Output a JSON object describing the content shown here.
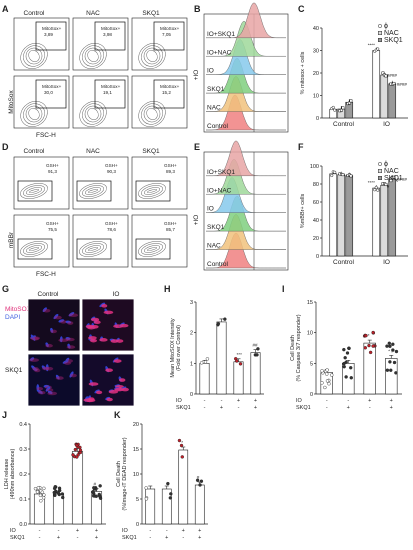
{
  "panels": {
    "A": "A",
    "B": "B",
    "C": "C",
    "D": "D",
    "E": "E",
    "F": "F",
    "G": "G",
    "H": "H",
    "I": "I",
    "J": "J",
    "K": "K"
  },
  "group_labels": [
    "Control",
    "NAC",
    "SKQ1"
  ],
  "panel_a": {
    "ylabel": "MitoSox",
    "xlabel": "FSC-H",
    "top": [
      {
        "label": "MitoSox+",
        "value": "3,89"
      },
      {
        "label": "MitoSox+",
        "value": "3,98"
      },
      {
        "label": "MitoSox+",
        "value": "7,05"
      }
    ],
    "bottom": [
      {
        "label": "MitoSox+",
        "value": "30,0"
      },
      {
        "label": "MitoSox+",
        "value": "19,1"
      },
      {
        "label": "MitoSox+",
        "value": "15,2"
      }
    ]
  },
  "panel_d": {
    "ylabel": "mBBr",
    "xlabel": "FSC-H",
    "top": [
      {
        "label": "GSH+",
        "value": "91,3"
      },
      {
        "label": "GSH+",
        "value": "90,3"
      },
      {
        "label": "GSH+",
        "value": "89,3"
      }
    ],
    "bottom": [
      {
        "label": "GSH+",
        "value": "75,5"
      },
      {
        "label": "GSH+",
        "value": "78,6"
      },
      {
        "label": "GSH+",
        "value": "85,7"
      }
    ]
  },
  "histo_labels": [
    "IO+SKQ1",
    "IO+NAC",
    "IO",
    "SKQ1",
    "NAC",
    "Control"
  ],
  "histo_axis": "+IO",
  "histo_colors": [
    "#e8a4a4",
    "#9fd89a",
    "#86c9ec",
    "#7fcf7f",
    "#f1c27d",
    "#f08080"
  ],
  "legend": [
    "ϕ",
    "NAC",
    "SKQ1"
  ],
  "ctrl_label": "Control",
  "io_label": "IO",
  "sig": {
    "c_phi": "****",
    "c_nac": "####",
    "c_skq": "####",
    "f_phi": "****",
    "f_nac": "#",
    "f_skq": "####",
    "h_io": "***",
    "h_skq": "##",
    "i_io": "*",
    "i_skq": "* #",
    "j_io": "*",
    "j_skq": "#",
    "k_io": "*",
    "k_skq": "#"
  },
  "panel_g": {
    "col1": "Control",
    "col2": "IO",
    "row2": "SKQ1",
    "stain1": "MitoSOX",
    "stain2": "DAPI"
  },
  "treat": {
    "io": "IO",
    "skq": "SKQ1",
    "io_row": [
      "-",
      "-",
      "+",
      "+"
    ],
    "skq_row": [
      "-",
      "+",
      "-",
      "+"
    ]
  },
  "chart_data": [
    {
      "panel": "C",
      "type": "bar",
      "ylabel": "% mitosox + cells",
      "ylim": [
        0,
        40
      ],
      "yticks": [
        0,
        10,
        20,
        30,
        40
      ],
      "categories": [
        "Control",
        "IO"
      ],
      "series": [
        {
          "name": "ϕ",
          "values": [
            3.9,
            30.0
          ]
        },
        {
          "name": "NAC",
          "values": [
            4.0,
            19.1
          ]
        },
        {
          "name": "SKQ1",
          "values": [
            7.0,
            15.2
          ]
        }
      ]
    },
    {
      "panel": "F",
      "type": "bar",
      "ylabel": "%mBBr+ cells",
      "ylim": [
        0,
        100
      ],
      "yticks": [
        0,
        20,
        40,
        60,
        80,
        100
      ],
      "categories": [
        "Control",
        "IO"
      ],
      "series": [
        {
          "name": "ϕ",
          "values": [
            91.3,
            75.5
          ]
        },
        {
          "name": "NAC",
          "values": [
            90.3,
            78.6
          ]
        },
        {
          "name": "SKQ1",
          "values": [
            89.3,
            85.7
          ]
        }
      ]
    },
    {
      "panel": "H",
      "type": "bar",
      "ylabel": "Mean MitoSOX Intensity (Fold over Control)",
      "ylim": [
        0,
        3
      ],
      "yticks": [
        0,
        1,
        2,
        3
      ],
      "categories": [
        "Control",
        "SKQ1",
        "IO",
        "IO+SKQ1"
      ],
      "values": [
        1.0,
        2.35,
        1.05,
        1.35
      ]
    },
    {
      "panel": "I",
      "type": "bar",
      "ylabel": "Cell Death (% Caspase 3/7 responder)",
      "ylim": [
        0,
        15
      ],
      "yticks": [
        0,
        5,
        10,
        15
      ],
      "categories": [
        "Control",
        "SKQ1",
        "IO",
        "IO+SKQ1"
      ],
      "values": [
        3.5,
        5.0,
        8.3,
        5.8
      ]
    },
    {
      "panel": "J",
      "type": "bar",
      "ylabel": "LDH release (490nm absorbance)",
      "ylim": [
        0,
        0.4
      ],
      "yticks": [
        0.0,
        0.1,
        0.2,
        0.3,
        0.4
      ],
      "categories": [
        "Control",
        "SKQ1",
        "IO",
        "IO+SKQ1"
      ],
      "values": [
        0.12,
        0.12,
        0.29,
        0.13
      ]
    },
    {
      "panel": "K",
      "type": "bar",
      "ylabel": "Cell Death (%Image-iT DEAD responder)",
      "ylim": [
        0,
        20
      ],
      "yticks": [
        0,
        5,
        10,
        15,
        20
      ],
      "categories": [
        "Control",
        "SKQ1",
        "IO",
        "IO+SKQ1"
      ],
      "values": [
        7.0,
        7.0,
        14.8,
        7.8
      ]
    }
  ]
}
